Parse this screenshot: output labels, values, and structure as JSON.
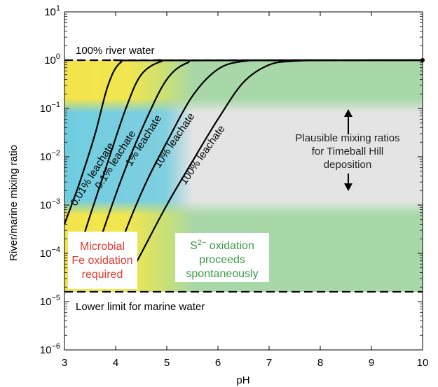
{
  "chart_data": {
    "type": "line",
    "xlabel": "pH",
    "ylabel": "River/marine mixing ratio",
    "x_log": false,
    "y_log": true,
    "xlim": [
      3,
      10
    ],
    "ylim_exponents": [
      -6,
      1
    ],
    "x_ticks": [
      "3",
      "4",
      "5",
      "6",
      "7",
      "8",
      "9",
      "10"
    ],
    "y_ticks": [
      {
        "base": "10",
        "exp": "1"
      },
      {
        "base": "10",
        "exp": "0"
      },
      {
        "base": "10",
        "exp": "−1"
      },
      {
        "base": "10",
        "exp": "−2"
      },
      {
        "base": "10",
        "exp": "−3"
      },
      {
        "base": "10",
        "exp": "−4"
      },
      {
        "base": "10",
        "exp": "−5"
      },
      {
        "base": "10",
        "exp": "−6"
      }
    ],
    "reference_lines": [
      {
        "label": "100% river water",
        "y": 1,
        "style": "dashed"
      },
      {
        "label": "Lower limit for marine water",
        "y": 1.6e-05,
        "style": "dashed"
      }
    ],
    "shaded_regions": [
      {
        "name": "yellow",
        "color": "#f2e24a",
        "ph_range": [
          3,
          5
        ]
      },
      {
        "name": "green",
        "color": "#a9d8a8",
        "ph_range": [
          5,
          10
        ]
      },
      {
        "name": "plausible-band",
        "color": "#e6e6e6",
        "y_range": [
          0.001,
          0.1
        ],
        "blue": "#6fcde0"
      }
    ],
    "series": [
      {
        "name": "0.01% leachate",
        "points": [
          [
            3.0,
            0.0004
          ],
          [
            3.3,
            0.003
          ],
          [
            3.6,
            0.03
          ],
          [
            3.85,
            0.3
          ],
          [
            4.1,
            0.9
          ],
          [
            4.5,
            0.99
          ],
          [
            10,
            1.0
          ]
        ]
      },
      {
        "name": "0.1% leachate",
        "points": [
          [
            3.15,
            4e-05
          ],
          [
            3.5,
            0.0006
          ],
          [
            3.85,
            0.008
          ],
          [
            4.2,
            0.1
          ],
          [
            4.5,
            0.5
          ],
          [
            4.9,
            0.95
          ],
          [
            5.3,
            0.99
          ],
          [
            10,
            1.0
          ]
        ]
      },
      {
        "name": "1% leachate",
        "points": [
          [
            3.4,
            2e-05
          ],
          [
            3.8,
            0.0004
          ],
          [
            4.2,
            0.006
          ],
          [
            4.6,
            0.06
          ],
          [
            5.0,
            0.4
          ],
          [
            5.4,
            0.88
          ],
          [
            5.9,
            0.99
          ],
          [
            10,
            1.0
          ]
        ]
      },
      {
        "name": "10% leachate",
        "points": [
          [
            3.8,
            2e-05
          ],
          [
            4.2,
            0.0003
          ],
          [
            4.6,
            0.003
          ],
          [
            5.0,
            0.02
          ],
          [
            5.5,
            0.18
          ],
          [
            6.0,
            0.65
          ],
          [
            6.5,
            0.95
          ],
          [
            7.2,
            0.99
          ],
          [
            10,
            1.0
          ]
        ]
      },
      {
        "name": "100% leachate",
        "points": [
          [
            4.15,
            2e-05
          ],
          [
            4.5,
            0.0001
          ],
          [
            5.0,
            0.001
          ],
          [
            5.5,
            0.008
          ],
          [
            6.0,
            0.06
          ],
          [
            6.5,
            0.35
          ],
          [
            7.0,
            0.8
          ],
          [
            7.5,
            0.96
          ],
          [
            8.2,
            0.995
          ],
          [
            10,
            1.0
          ]
        ]
      }
    ],
    "series_label_positions": [
      {
        "name": "0.01% leachate",
        "ph": 3.6,
        "y": 0.004,
        "angle": -58
      },
      {
        "name": "0.1% leachate",
        "ph": 4.05,
        "y": 0.008,
        "angle": -58
      },
      {
        "name": "1% leachate",
        "ph": 4.6,
        "y": 0.02,
        "angle": -58
      },
      {
        "name": "10% leachate",
        "ph": 5.2,
        "y": 0.02,
        "angle": -56
      },
      {
        "name": "100% leachate",
        "ph": 5.75,
        "y": 0.01,
        "angle": -55
      }
    ],
    "annotations": {
      "microbial": [
        "Microbial",
        "Fe oxidation",
        "required"
      ],
      "sulfide": [
        "S",
        "2−",
        " oxidation",
        "proceeds",
        "spontaneously"
      ],
      "plausible": [
        "Plausible mixing ratios",
        "for Timeball Hill",
        "deposition"
      ]
    },
    "annotation_colors": {
      "microbial": "#e03a2e",
      "sulfide": "#3a9a48",
      "plausible": "#222222"
    }
  }
}
